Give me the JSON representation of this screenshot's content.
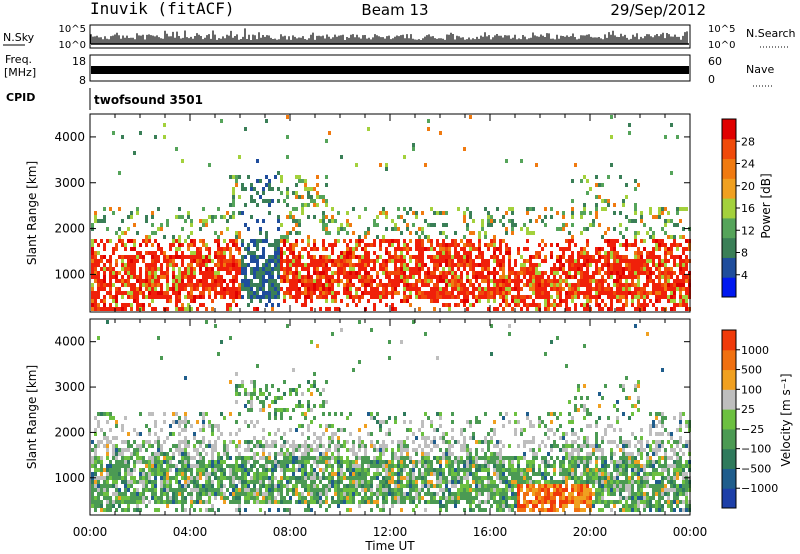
{
  "header": {
    "station": "Inuvik (fitACF)",
    "beam": "Beam 13",
    "date": "29/Sep/2012"
  },
  "top_panels": {
    "nsky_label": "N.Sky",
    "nsky_ticks": [
      "10^5",
      "10^0"
    ],
    "nsearch_label": "N.Search",
    "nsearch_ticks": [
      "10^5",
      "10^0"
    ],
    "freq_label_1": "Freq.",
    "freq_label_2": "[MHz]",
    "freq_ticks": [
      "18",
      "8"
    ],
    "nave_label": "Nave",
    "nave_ticks": [
      "60",
      "0"
    ],
    "cpid_label": "CPID",
    "cpid_value": "twofsound 3501"
  },
  "colors": {
    "power": [
      "#0018f0",
      "#1f4d9c",
      "#3a7f57",
      "#55a45a",
      "#a3d13c",
      "#f0a020",
      "#f07a10",
      "#f04a0a",
      "#f0200a",
      "#e00000"
    ],
    "velocity": [
      "#1d3fa8",
      "#1f5d8c",
      "#2f7a5c",
      "#4b9a53",
      "#6cc040",
      "#bebebe",
      "#f0a020",
      "#f07010",
      "#f03a0a",
      "#e00000"
    ]
  },
  "chart_data": [
    {
      "type": "heatmap",
      "name": "power",
      "title": "",
      "xlabel": "",
      "ylabel": "Slant Range [km]",
      "xlim": [
        0,
        24
      ],
      "ylim": [
        180,
        4500
      ],
      "x_tick_labels": [
        "00:00",
        "04:00",
        "08:00",
        "12:00",
        "16:00",
        "20:00",
        "00:00"
      ],
      "y_tick_labels": [
        "1000",
        "2000",
        "3000",
        "4000"
      ],
      "colorbar": {
        "label": "Power [dB]",
        "range": [
          0,
          32
        ],
        "tick_labels": [
          "4",
          "8",
          "12",
          "16",
          "20",
          "24",
          "28"
        ]
      }
    },
    {
      "type": "heatmap",
      "name": "velocity",
      "title": "",
      "xlabel": "Time UT",
      "ylabel": "Slant Range [km]",
      "xlim": [
        0,
        24
      ],
      "ylim": [
        180,
        4500
      ],
      "x_tick_labels": [
        "00:00",
        "04:00",
        "08:00",
        "12:00",
        "16:00",
        "20:00",
        "00:00"
      ],
      "y_tick_labels": [
        "1000",
        "2000",
        "3000",
        "4000"
      ],
      "colorbar": {
        "label": "Velocity [m s⁻¹]",
        "tick_labels": [
          "1000",
          "500",
          "100",
          "25",
          "−25",
          "−100",
          "−500",
          "−1000"
        ]
      }
    }
  ]
}
